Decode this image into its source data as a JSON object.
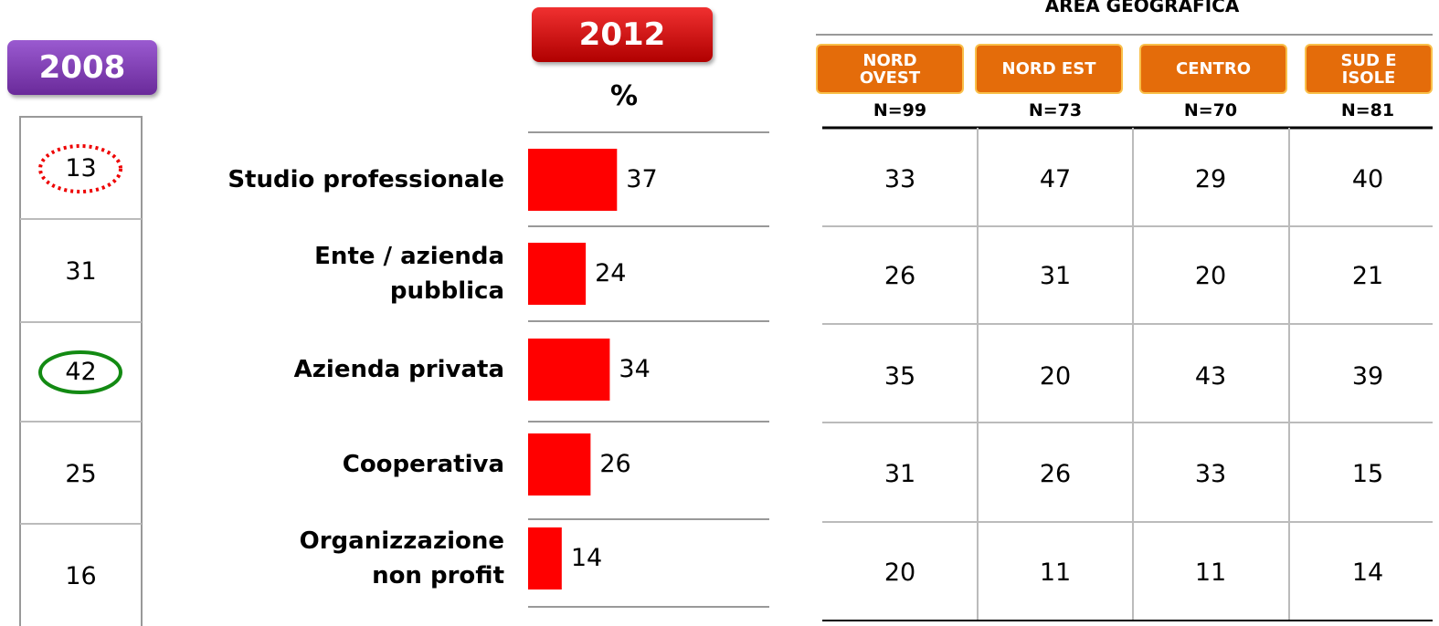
{
  "badge_2008": "2008",
  "table_2008": {
    "values": [
      13,
      31,
      42,
      25,
      16
    ]
  },
  "chart_data": {
    "type": "bar",
    "orientation": "horizontal",
    "title": "2012",
    "subtitle": "%",
    "categories": [
      "Studio professionale",
      "Ente / azienda\npubblica",
      "Azienda privata",
      "Cooperativa",
      "Organizzazione\nnon profit"
    ],
    "values": [
      37,
      24,
      34,
      26,
      14
    ],
    "color": "#ff0000"
  },
  "area_table": {
    "title": "AREA GEOGRAFICA",
    "columns": [
      {
        "name": "NORD\nOVEST",
        "n": "N=99"
      },
      {
        "name": "NORD EST",
        "n": "N=73"
      },
      {
        "name": "CENTRO",
        "n": "N=70"
      },
      {
        "name": "SUD E\nISOLE",
        "n": "N=81"
      }
    ],
    "rows": [
      [
        33,
        47,
        29,
        40
      ],
      [
        26,
        31,
        20,
        21
      ],
      [
        35,
        20,
        43,
        39
      ],
      [
        31,
        26,
        33,
        15
      ],
      [
        20,
        11,
        11,
        14
      ]
    ]
  }
}
